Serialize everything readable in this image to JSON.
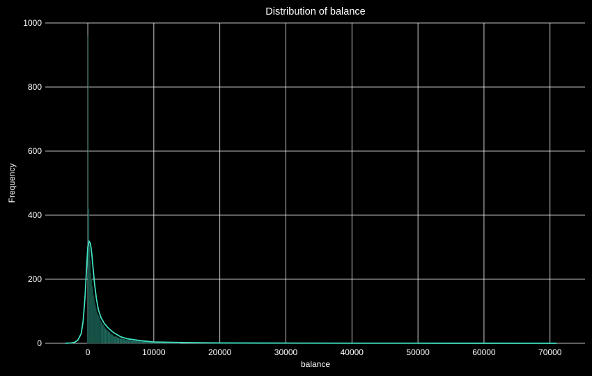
{
  "chart_data": {
    "type": "bar",
    "subtype": "histogram-with-kde",
    "title": "Distribution of balance",
    "xlabel": "balance",
    "ylabel": "Frequency",
    "xlim": [
      -6440,
      75300
    ],
    "ylim": [
      0,
      1000
    ],
    "xticks": [
      0,
      10000,
      20000,
      30000,
      40000,
      50000,
      60000,
      70000
    ],
    "yticks": [
      0,
      200,
      400,
      600,
      800,
      1000
    ],
    "grid": true,
    "background": "#000000",
    "grid_color": "#ffffff",
    "bar_color": "#2a8a78",
    "bar_edge_color": "#0f3a32",
    "line_color": "#40e0c0",
    "bins": {
      "x_start": [
        -100,
        0,
        100,
        200,
        300,
        400,
        500,
        600,
        700,
        800,
        900,
        1000,
        1100,
        1200,
        1300,
        1400,
        1500,
        1600,
        1700,
        1800,
        1900,
        2000,
        2200,
        2400,
        2600,
        2800,
        3000,
        3200,
        3400,
        3600,
        3800,
        4000,
        4400,
        4800,
        5200,
        5600,
        6000,
        6500,
        7000,
        7500,
        8000,
        9000,
        10000,
        11000,
        12000
      ],
      "x_end": [
        0,
        100,
        200,
        300,
        400,
        500,
        600,
        700,
        800,
        900,
        1000,
        1100,
        1200,
        1300,
        1400,
        1500,
        1600,
        1700,
        1800,
        1900,
        2000,
        2200,
        2400,
        2600,
        2800,
        3000,
        3200,
        3400,
        3600,
        3800,
        4000,
        4400,
        4800,
        5200,
        5600,
        6000,
        6500,
        7000,
        7500,
        8000,
        9000,
        10000,
        11000,
        12000,
        14000
      ],
      "counts": [
        80,
        960,
        420,
        310,
        260,
        220,
        200,
        180,
        170,
        150,
        140,
        130,
        120,
        110,
        100,
        95,
        90,
        85,
        80,
        75,
        70,
        65,
        58,
        52,
        46,
        42,
        38,
        34,
        30,
        27,
        24,
        21,
        18,
        15,
        13,
        11,
        10,
        8,
        7,
        6,
        5,
        4,
        3,
        2,
        1
      ]
    },
    "kde": {
      "x": [
        -3400,
        -2500,
        -2000,
        -1500,
        -1000,
        -700,
        -400,
        -200,
        0,
        200,
        400,
        600,
        800,
        1000,
        1300,
        1600,
        2000,
        2500,
        3000,
        3500,
        4000,
        5000,
        6000,
        8000,
        10000,
        15000,
        20000,
        30000,
        40000,
        50000,
        60000,
        71000
      ],
      "y": [
        0,
        1,
        3,
        10,
        30,
        70,
        150,
        230,
        300,
        318,
        312,
        280,
        235,
        190,
        140,
        105,
        80,
        62,
        50,
        40,
        32,
        20,
        14,
        8,
        4,
        2,
        1,
        0.5,
        0.3,
        0.2,
        0.1,
        0
      ]
    }
  }
}
